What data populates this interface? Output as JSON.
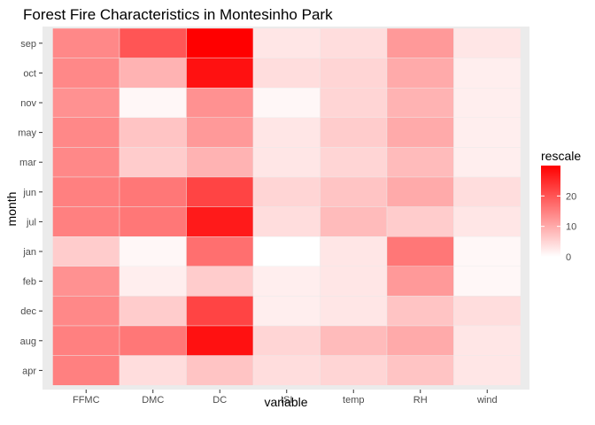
{
  "chart_data": {
    "type": "heatmap",
    "title": "Forest Fire Characteristics in Montesinho Park",
    "xlabel": "variable",
    "ylabel": "month",
    "x_categories": [
      "FFMC",
      "DMC",
      "DC",
      "ISI",
      "temp",
      "RH",
      "wind"
    ],
    "y_categories": [
      "sep",
      "oct",
      "nov",
      "may",
      "mar",
      "jun",
      "jul",
      "jan",
      "feb",
      "dec",
      "aug",
      "apr"
    ],
    "values": [
      [
        14,
        20,
        30,
        3,
        4,
        12,
        3
      ],
      [
        14,
        9,
        28,
        4,
        5,
        10,
        2
      ],
      [
        13,
        1,
        13,
        1,
        5,
        9,
        2
      ],
      [
        14,
        7,
        12,
        3,
        6,
        10,
        2
      ],
      [
        14,
        6,
        9,
        3,
        5,
        8,
        2
      ],
      [
        15,
        16,
        22,
        5,
        7,
        10,
        4
      ],
      [
        15,
        16,
        27,
        4,
        8,
        6,
        3
      ],
      [
        6,
        1,
        17,
        0,
        3,
        16,
        1
      ],
      [
        13,
        2,
        6,
        2,
        3,
        12,
        1
      ],
      [
        14,
        6,
        22,
        2,
        3,
        7,
        4
      ],
      [
        15,
        16,
        28,
        5,
        8,
        10,
        3
      ],
      [
        15,
        4,
        7,
        4,
        5,
        7,
        3
      ]
    ],
    "scale": {
      "low_color": "#ffffff",
      "high_color": "#ff0000",
      "range": [
        0,
        30
      ]
    },
    "legend": {
      "title": "rescale",
      "ticks": [
        0,
        10,
        20
      ],
      "position": "right"
    },
    "panel_background": "#ebebeb"
  }
}
